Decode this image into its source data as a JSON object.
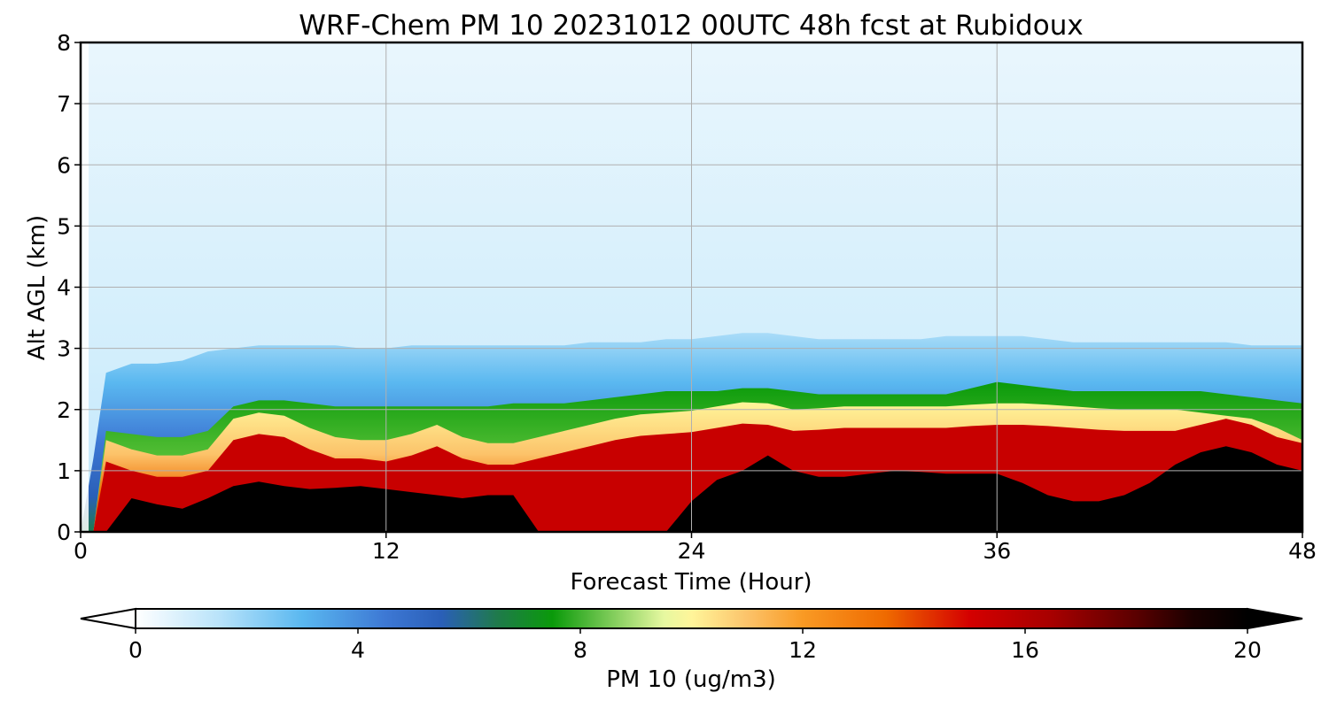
{
  "chart_data": {
    "type": "heatmap",
    "title": "WRF-Chem PM 10  20231012 00UTC 48h fcst at Rubidoux",
    "xlabel": "Forecast Time (Hour)",
    "ylabel": "Alt AGL (km)",
    "xlim": [
      0,
      48
    ],
    "ylim": [
      0,
      8
    ],
    "xticks": [
      "0",
      "12",
      "24",
      "36",
      "48"
    ],
    "yticks": [
      "0",
      "1",
      "2",
      "3",
      "4",
      "5",
      "6",
      "7",
      "8"
    ],
    "grid": true,
    "colorbar": {
      "label": "PM 10  (ug/m3)",
      "range": [
        0,
        20
      ],
      "extend": "both",
      "ticks": [
        "0",
        "4",
        "8",
        "12",
        "16",
        "20"
      ],
      "stops": [
        {
          "value": 0,
          "color": "#ffffff"
        },
        {
          "value": 1.5,
          "color": "#b9e3fa"
        },
        {
          "value": 3,
          "color": "#5ab8f0"
        },
        {
          "value": 4.5,
          "color": "#3d78d4"
        },
        {
          "value": 5.5,
          "color": "#2a5fb8"
        },
        {
          "value": 6.5,
          "color": "#1f7a4c"
        },
        {
          "value": 7.5,
          "color": "#0a9a0a"
        },
        {
          "value": 9.5,
          "color": "#e6f8a0"
        },
        {
          "value": 10,
          "color": "#fff59a"
        },
        {
          "value": 11,
          "color": "#fcc36a"
        },
        {
          "value": 12,
          "color": "#f99a24"
        },
        {
          "value": 13.5,
          "color": "#ef6a00"
        },
        {
          "value": 15,
          "color": "#d40000"
        },
        {
          "value": 16.5,
          "color": "#a60000"
        },
        {
          "value": 18,
          "color": "#5a0000"
        },
        {
          "value": 19,
          "color": "#1c0000"
        },
        {
          "value": 20,
          "color": "#000000"
        }
      ]
    },
    "x": [
      0,
      0.5,
      1,
      2,
      3,
      4,
      5,
      6,
      7,
      8,
      9,
      10,
      11,
      12,
      13,
      14,
      15,
      16,
      17,
      18,
      19,
      20,
      21,
      22,
      23,
      24,
      25,
      26,
      27,
      28,
      29,
      30,
      31,
      32,
      33,
      34,
      35,
      36,
      37,
      38,
      39,
      40,
      41,
      42,
      43,
      44,
      45,
      46,
      47,
      48
    ],
    "profile_height_km": {
      "black_top": [
        0,
        0,
        0,
        0.55,
        0.45,
        0.38,
        0.55,
        0.75,
        0.82,
        0.75,
        0.7,
        0.72,
        0.75,
        0.7,
        0.65,
        0.6,
        0.55,
        0.6,
        0.6,
        0,
        0,
        0,
        0,
        0,
        0,
        0.5,
        0.85,
        1.0,
        1.25,
        1.0,
        0.9,
        0.9,
        0.95,
        1.0,
        0.98,
        0.95,
        0.95,
        0.95,
        0.8,
        0.6,
        0.5,
        0.5,
        0.6,
        0.8,
        1.1,
        1.3,
        1.4,
        1.3,
        1.1,
        1.0
      ],
      "yellow_top": [
        0,
        0,
        1.5,
        1.35,
        1.25,
        1.25,
        1.35,
        1.85,
        1.95,
        1.9,
        1.7,
        1.55,
        1.5,
        1.5,
        1.6,
        1.75,
        1.55,
        1.45,
        1.45,
        1.55,
        1.65,
        1.75,
        1.85,
        1.92,
        1.95,
        1.98,
        2.05,
        2.12,
        2.1,
        2.0,
        2.02,
        2.05,
        2.05,
        2.05,
        2.05,
        2.05,
        2.08,
        2.1,
        2.1,
        2.08,
        2.05,
        2.02,
        2.0,
        2.0,
        2.0,
        1.95,
        1.9,
        1.85,
        1.7,
        1.5
      ],
      "green_top": [
        0,
        0,
        1.65,
        1.6,
        1.55,
        1.55,
        1.65,
        2.05,
        2.15,
        2.15,
        2.1,
        2.05,
        2.05,
        2.05,
        2.05,
        2.05,
        2.05,
        2.05,
        2.1,
        2.1,
        2.1,
        2.15,
        2.2,
        2.25,
        2.3,
        2.3,
        2.3,
        2.35,
        2.35,
        2.3,
        2.25,
        2.25,
        2.25,
        2.25,
        2.25,
        2.25,
        2.35,
        2.45,
        2.4,
        2.35,
        2.3,
        2.3,
        2.3,
        2.3,
        2.3,
        2.3,
        2.25,
        2.2,
        2.15,
        2.1
      ],
      "blue_top": [
        0,
        1.2,
        2.6,
        2.75,
        2.75,
        2.8,
        2.95,
        3.0,
        3.05,
        3.05,
        3.05,
        3.05,
        3.0,
        3.0,
        3.05,
        3.05,
        3.05,
        3.05,
        3.05,
        3.05,
        3.05,
        3.1,
        3.1,
        3.1,
        3.15,
        3.15,
        3.2,
        3.25,
        3.25,
        3.2,
        3.15,
        3.15,
        3.15,
        3.15,
        3.15,
        3.2,
        3.2,
        3.2,
        3.2,
        3.15,
        3.1,
        3.1,
        3.1,
        3.1,
        3.1,
        3.1,
        3.1,
        3.05,
        3.05,
        3.05
      ]
    },
    "concentration_ug_m3": {
      "near_surface": [
        0,
        0,
        20,
        20,
        20,
        20,
        20,
        20,
        20,
        20,
        20,
        20,
        20,
        20,
        20,
        20,
        20,
        20,
        20,
        16,
        16,
        16,
        16,
        16,
        16,
        20,
        20,
        20,
        20,
        20,
        20,
        20,
        20,
        20,
        20,
        20,
        20,
        20,
        20,
        20,
        20,
        20,
        20,
        20,
        20,
        20,
        20,
        20,
        20,
        20
      ],
      "boundary_layer": [
        0,
        0,
        16,
        16,
        15,
        15,
        16,
        14,
        13,
        13,
        12,
        11.5,
        11,
        11,
        11,
        10.5,
        11,
        11.5,
        12,
        14,
        15,
        16,
        16,
        16,
        16,
        16,
        16,
        16,
        16,
        16,
        16,
        16,
        16,
        16,
        15,
        14,
        13,
        13,
        13,
        14,
        15,
        16,
        16,
        16,
        16,
        16,
        15.5,
        15,
        15,
        15
      ],
      "free_troposphere": [
        0.2,
        0.6,
        1.2,
        1.4,
        1.0,
        1.2,
        1.4,
        1.5,
        1.8,
        2.0,
        2.1,
        2.2,
        2.1,
        1.9,
        1.8,
        1.6,
        1.4,
        1.2,
        1.1,
        1.1,
        1.3,
        1.4,
        1.4,
        1.4,
        1.3,
        1.3,
        1.4,
        1.5,
        1.5,
        1.4,
        1.3,
        1.3,
        1.3,
        1.3,
        1.4,
        1.4,
        1.3,
        1.2,
        1.1,
        1.0,
        1.0,
        0.9,
        0.9,
        0.9,
        0.9,
        0.8,
        0.8,
        0.8,
        0.8,
        0.8
      ]
    }
  }
}
